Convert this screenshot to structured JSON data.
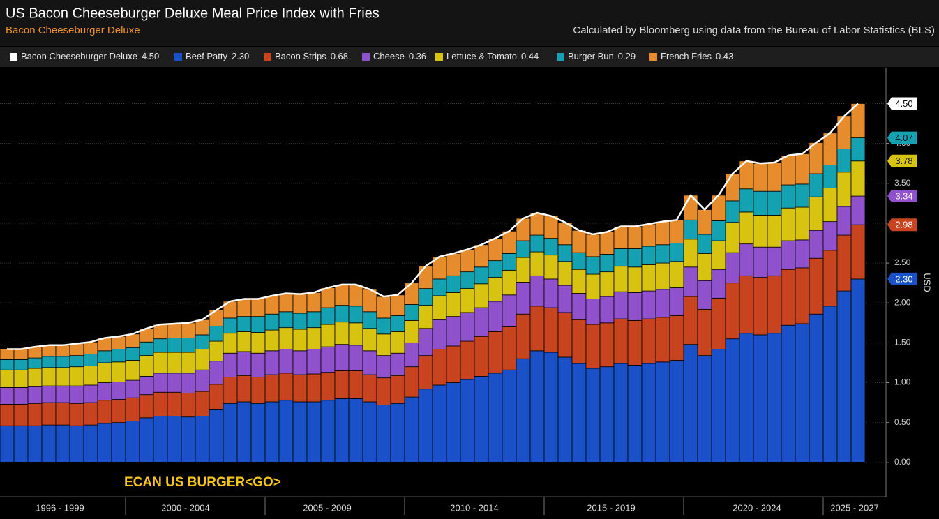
{
  "chart_data": {
    "type": "stacked_bar",
    "title": "US Bacon Cheeseburger Deluxe Meal Price Index with Fries",
    "subtitle": "Bacon Cheeseburger Deluxe",
    "source": "Calculated by Bloomberg using data from the Bureau of Labor Statistics (BLS)",
    "annotation": "ECAN US BURGER<GO>",
    "y_label": "USD",
    "x_period_labels": [
      "1996 - 1999",
      "2000 - 2004",
      "2005 - 2009",
      "2010 - 2014",
      "2015 - 2019",
      "2020 - 2024",
      "2025 - 2027"
    ],
    "ylim": [
      -0.43,
      4.95
    ],
    "yticks": [
      {
        "value": 0,
        "label": "0.00"
      },
      {
        "value": 0.5,
        "label": "0.50"
      },
      {
        "value": 1,
        "label": "1.00"
      },
      {
        "value": 1.5,
        "label": "1.50"
      },
      {
        "value": 2,
        "label": "2.00"
      },
      {
        "value": 2.5,
        "label": "2.50"
      },
      {
        "value": 3,
        "label": "3.00"
      },
      {
        "value": 3.5,
        "label": "3.50"
      },
      {
        "value": 4,
        "label": "4.00"
      },
      {
        "value": 4.5,
        "label": "4.50"
      }
    ],
    "grid": true,
    "total": {
      "name": "Bacon Cheeseburger Deluxe",
      "color": "#ffffff",
      "legend_value": "4.50",
      "tag": "4.50",
      "values": [
        1.42,
        1.42,
        1.45,
        1.47,
        1.47,
        1.49,
        1.51,
        1.56,
        1.58,
        1.61,
        1.68,
        1.73,
        1.74,
        1.75,
        1.79,
        1.91,
        2.02,
        2.05,
        2.05,
        2.09,
        2.12,
        2.11,
        2.13,
        2.19,
        2.23,
        2.23,
        2.17,
        2.08,
        2.1,
        2.25,
        2.46,
        2.58,
        2.62,
        2.67,
        2.73,
        2.81,
        2.9,
        3.06,
        3.13,
        3.09,
        3.01,
        2.91,
        2.86,
        2.89,
        2.96,
        2.96,
        2.99,
        3.02,
        3.04,
        3.35,
        3.17,
        3.35,
        3.62,
        3.78,
        3.75,
        3.76,
        3.85,
        3.87,
        4.01,
        4.13,
        4.34,
        4.5
      ]
    },
    "series": [
      {
        "name": "Beef Patty",
        "color": "#1a50c8",
        "legend_value": "2.30",
        "tag": "2.30",
        "values": [
          0.46,
          0.46,
          0.46,
          0.47,
          0.47,
          0.46,
          0.47,
          0.49,
          0.5,
          0.52,
          0.56,
          0.58,
          0.58,
          0.57,
          0.58,
          0.66,
          0.74,
          0.76,
          0.74,
          0.76,
          0.78,
          0.76,
          0.76,
          0.78,
          0.8,
          0.8,
          0.76,
          0.72,
          0.74,
          0.82,
          0.92,
          0.97,
          1.0,
          1.04,
          1.08,
          1.12,
          1.16,
          1.3,
          1.4,
          1.38,
          1.32,
          1.24,
          1.18,
          1.2,
          1.24,
          1.22,
          1.24,
          1.26,
          1.28,
          1.48,
          1.34,
          1.42,
          1.55,
          1.62,
          1.6,
          1.62,
          1.72,
          1.74,
          1.86,
          1.96,
          2.15,
          2.3
        ]
      },
      {
        "name": "Bacon Strips",
        "color": "#c8441e",
        "legend_value": "0.68",
        "tag": "2.98",
        "values": [
          0.27,
          0.27,
          0.28,
          0.28,
          0.28,
          0.28,
          0.28,
          0.29,
          0.29,
          0.29,
          0.29,
          0.3,
          0.3,
          0.3,
          0.31,
          0.32,
          0.33,
          0.33,
          0.33,
          0.34,
          0.34,
          0.34,
          0.35,
          0.35,
          0.35,
          0.35,
          0.34,
          0.34,
          0.35,
          0.38,
          0.42,
          0.45,
          0.46,
          0.48,
          0.5,
          0.52,
          0.54,
          0.56,
          0.56,
          0.56,
          0.56,
          0.55,
          0.55,
          0.55,
          0.56,
          0.56,
          0.56,
          0.56,
          0.56,
          0.6,
          0.58,
          0.64,
          0.7,
          0.72,
          0.72,
          0.72,
          0.7,
          0.7,
          0.7,
          0.7,
          0.7,
          0.68
        ]
      },
      {
        "name": "Cheese",
        "color": "#8f52cc",
        "legend_value": "0.36",
        "tag": "3.34",
        "values": [
          0.21,
          0.21,
          0.21,
          0.21,
          0.21,
          0.22,
          0.22,
          0.22,
          0.22,
          0.22,
          0.23,
          0.24,
          0.24,
          0.25,
          0.27,
          0.29,
          0.3,
          0.3,
          0.3,
          0.3,
          0.3,
          0.3,
          0.31,
          0.32,
          0.33,
          0.32,
          0.3,
          0.28,
          0.28,
          0.3,
          0.34,
          0.37,
          0.37,
          0.36,
          0.36,
          0.38,
          0.4,
          0.4,
          0.38,
          0.36,
          0.34,
          0.33,
          0.32,
          0.33,
          0.34,
          0.35,
          0.35,
          0.35,
          0.35,
          0.37,
          0.36,
          0.36,
          0.38,
          0.4,
          0.38,
          0.36,
          0.36,
          0.35,
          0.35,
          0.36,
          0.36,
          0.36
        ]
      },
      {
        "name": "Lettuce & Tomato",
        "color": "#d8c410",
        "legend_value": "0.44",
        "tag": "3.78",
        "values": [
          0.22,
          0.22,
          0.23,
          0.23,
          0.23,
          0.24,
          0.24,
          0.25,
          0.25,
          0.25,
          0.26,
          0.26,
          0.26,
          0.26,
          0.26,
          0.25,
          0.25,
          0.25,
          0.26,
          0.26,
          0.27,
          0.27,
          0.27,
          0.28,
          0.28,
          0.28,
          0.28,
          0.27,
          0.27,
          0.28,
          0.29,
          0.3,
          0.3,
          0.3,
          0.3,
          0.3,
          0.31,
          0.31,
          0.3,
          0.3,
          0.3,
          0.3,
          0.31,
          0.31,
          0.32,
          0.32,
          0.33,
          0.33,
          0.33,
          0.35,
          0.34,
          0.36,
          0.38,
          0.4,
          0.4,
          0.4,
          0.41,
          0.41,
          0.42,
          0.42,
          0.43,
          0.44
        ]
      },
      {
        "name": "Burger Bun",
        "color": "#14a2b2",
        "legend_value": "0.29",
        "tag": "4.07",
        "values": [
          0.13,
          0.13,
          0.13,
          0.14,
          0.14,
          0.14,
          0.15,
          0.15,
          0.16,
          0.16,
          0.17,
          0.17,
          0.18,
          0.18,
          0.18,
          0.19,
          0.19,
          0.19,
          0.2,
          0.2,
          0.2,
          0.2,
          0.2,
          0.21,
          0.21,
          0.21,
          0.21,
          0.2,
          0.2,
          0.2,
          0.21,
          0.21,
          0.21,
          0.21,
          0.21,
          0.21,
          0.21,
          0.21,
          0.21,
          0.21,
          0.21,
          0.21,
          0.22,
          0.22,
          0.22,
          0.23,
          0.23,
          0.23,
          0.23,
          0.24,
          0.24,
          0.25,
          0.27,
          0.29,
          0.3,
          0.3,
          0.29,
          0.29,
          0.29,
          0.29,
          0.29,
          0.29
        ]
      },
      {
        "name": "French Fries",
        "color": "#e68c2c",
        "legend_value": "0.43",
        "tag": "4.50",
        "values": [
          0.13,
          0.13,
          0.14,
          0.14,
          0.14,
          0.15,
          0.15,
          0.16,
          0.16,
          0.17,
          0.17,
          0.18,
          0.18,
          0.19,
          0.19,
          0.2,
          0.21,
          0.22,
          0.22,
          0.23,
          0.23,
          0.24,
          0.24,
          0.25,
          0.26,
          0.27,
          0.28,
          0.27,
          0.26,
          0.27,
          0.28,
          0.28,
          0.28,
          0.28,
          0.28,
          0.28,
          0.28,
          0.28,
          0.28,
          0.28,
          0.28,
          0.28,
          0.28,
          0.28,
          0.28,
          0.28,
          0.28,
          0.29,
          0.29,
          0.31,
          0.31,
          0.32,
          0.34,
          0.35,
          0.35,
          0.36,
          0.37,
          0.38,
          0.39,
          0.4,
          0.41,
          0.43
        ]
      }
    ]
  }
}
